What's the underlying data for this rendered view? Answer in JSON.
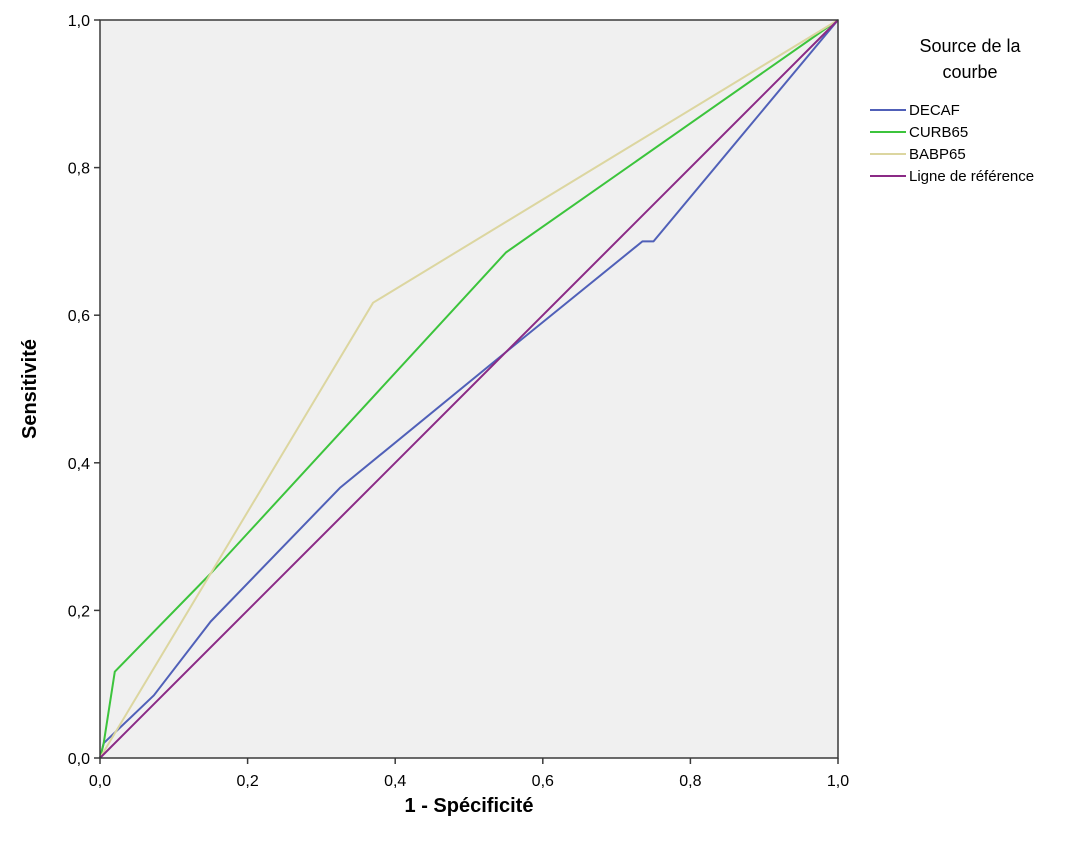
{
  "chart_data": {
    "type": "line",
    "title": "",
    "xlabel": "1 - Spécificité",
    "ylabel": "Sensitivité",
    "xlim": [
      0,
      1
    ],
    "ylim": [
      0,
      1
    ],
    "x_ticks": [
      0,
      0.2,
      0.4,
      0.6,
      0.8,
      1.0
    ],
    "y_ticks": [
      0,
      0.2,
      0.4,
      0.6,
      0.8,
      1.0
    ],
    "x_tick_labels": [
      "0,0",
      "0,2",
      "0,4",
      "0,6",
      "0,8",
      "1,0"
    ],
    "y_tick_labels": [
      "0,0",
      "0,2",
      "0,4",
      "0,6",
      "0,8",
      "1,0"
    ],
    "grid": false,
    "plot_background": "#f0f0f0",
    "legend": {
      "title_lines": [
        "Source de la",
        "courbe"
      ],
      "position": "right"
    },
    "series": [
      {
        "name": "DECAF",
        "color": "#5060b8",
        "points": [
          [
            0,
            0
          ],
          [
            0.005,
            0.02
          ],
          [
            0.073,
            0.085
          ],
          [
            0.15,
            0.185
          ],
          [
            0.325,
            0.366
          ],
          [
            0.55,
            0.55
          ],
          [
            0.735,
            0.7
          ],
          [
            0.75,
            0.7
          ],
          [
            1,
            1
          ]
        ]
      },
      {
        "name": "CURB65",
        "color": "#3cc43c",
        "points": [
          [
            0,
            0
          ],
          [
            0.005,
            0.02
          ],
          [
            0.02,
            0.117
          ],
          [
            0.15,
            0.25
          ],
          [
            0.55,
            0.685
          ],
          [
            1,
            1
          ]
        ]
      },
      {
        "name": "BABP65",
        "color": "#dcd6a0",
        "points": [
          [
            0,
            0
          ],
          [
            0.37,
            0.617
          ],
          [
            1,
            1
          ]
        ]
      },
      {
        "name": "Ligne de référence",
        "color": "#8b2a86",
        "points": [
          [
            0,
            0
          ],
          [
            1,
            1
          ]
        ]
      }
    ]
  }
}
